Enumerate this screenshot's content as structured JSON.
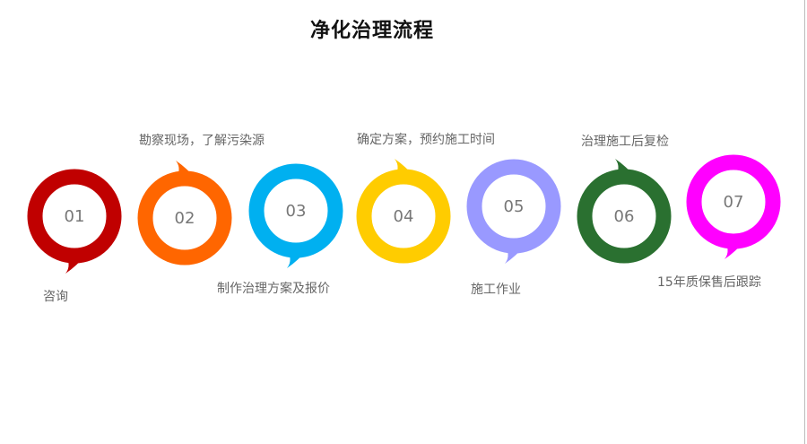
{
  "title": "净化治理流程",
  "steps": [
    {
      "number": "01",
      "label": "咨询",
      "color": "#c00000",
      "tail": "bottom"
    },
    {
      "number": "02",
      "label": "勘察现场，了解污染源",
      "color": "#ff6600",
      "tail": "top"
    },
    {
      "number": "03",
      "label": "制作治理方案及报价",
      "color": "#00b0f0",
      "tail": "bottom"
    },
    {
      "number": "04",
      "label": "确定方案，预约施工时间",
      "color": "#ffcc00",
      "tail": "top"
    },
    {
      "number": "05",
      "label": "施工作业",
      "color": "#9999ff",
      "tail": "bottom"
    },
    {
      "number": "06",
      "label": "治理施工后复检",
      "color": "#2a7030",
      "tail": "top"
    },
    {
      "number": "07",
      "label": "15年质保售后跟踪",
      "color": "#ff00ff",
      "tail": "bottom"
    }
  ]
}
